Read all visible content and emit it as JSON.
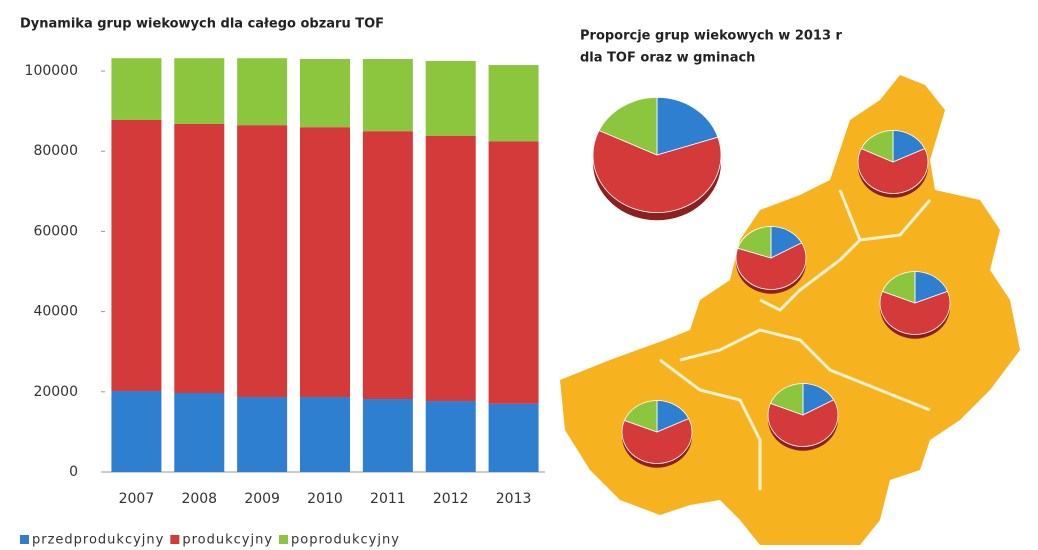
{
  "chart_data": [
    {
      "type": "bar",
      "stacked": true,
      "title": "Dynamika  grup wiekowych  dla całego obzaru  TOF",
      "categories": [
        "2007",
        "2008",
        "2009",
        "2010",
        "2011",
        "2012",
        "2013"
      ],
      "series": [
        {
          "name": "przedprodukcyjny",
          "color": "#2f7fd0",
          "values": [
            20200,
            19700,
            18700,
            18700,
            18200,
            17700,
            17000
          ]
        },
        {
          "name": "produkcyjny",
          "color": "#d43a3a",
          "values": [
            67600,
            67100,
            67800,
            67300,
            66800,
            66100,
            65500
          ]
        },
        {
          "name": "poprodukcyjny",
          "color": "#8cc63f",
          "values": [
            15400,
            16400,
            16700,
            17000,
            18000,
            18700,
            19000
          ]
        }
      ],
      "ylim": [
        0,
        105000
      ],
      "yticks": [
        0,
        20000,
        40000,
        60000,
        80000,
        100000
      ],
      "grid": false,
      "legend": "bottom"
    },
    {
      "type": "pie",
      "title": "Proporcje grup wiekowych  w 2013 r",
      "subtitle": "dla TOF  oraz w gminach",
      "colors": [
        "#2f7fd0",
        "#d43a3a",
        "#8cc63f"
      ],
      "pies": [
        {
          "values": [
            20,
            62,
            18
          ]
        },
        {
          "values": [
            18,
            64,
            18
          ]
        },
        {
          "values": [
            17,
            63,
            20
          ]
        },
        {
          "values": [
            19,
            62,
            19
          ]
        },
        {
          "values": [
            18,
            63,
            19
          ]
        },
        {
          "values": [
            17,
            64,
            19
          ]
        }
      ]
    }
  ]
}
